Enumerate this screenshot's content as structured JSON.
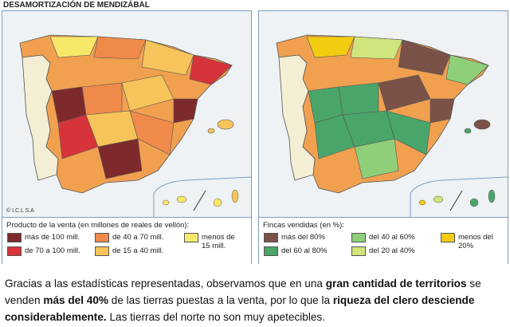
{
  "header": {
    "title": "DESAMORTIZACIÓN DE MENDIZÁBAL"
  },
  "maps": [
    {
      "credit": "© I.C.L S.A",
      "legend": {
        "title": "Producto de la venta (en millones de reales de vellón):",
        "items": [
          {
            "label": "más de 100 mill.",
            "color": "#7e2a2c"
          },
          {
            "label": "de 70 a 100 mill.",
            "color": "#d7333b"
          },
          {
            "label": "de 40 a 70 mill.",
            "color": "#ef8a4a"
          },
          {
            "label": "de 15 a 40 mill.",
            "color": "#f6c45a"
          },
          {
            "label": "menos de 15 mill.",
            "color": "#f8e86a"
          }
        ]
      }
    },
    {
      "legend": {
        "title": "Fincas vendidas (en %):",
        "items": [
          {
            "label": "más del 80%",
            "color": "#7a5248"
          },
          {
            "label": "del 60 al 80%",
            "color": "#4aa56a"
          },
          {
            "label": "del 40 al 60%",
            "color": "#8fcf7a"
          },
          {
            "label": "del 20 al 40%",
            "color": "#cfe47c"
          },
          {
            "label": "menos del 20%",
            "color": "#f2cc10"
          }
        ]
      }
    }
  ],
  "paragraph": {
    "segments": [
      {
        "text": "Gracias a las estadísticas representadas, observamos que en una ",
        "bold": false
      },
      {
        "text": "gran cantidad de territorios",
        "bold": true
      },
      {
        "text": " se venden ",
        "bold": false
      },
      {
        "text": "más del 40%",
        "bold": true
      },
      {
        "text": " de las tierras puestas a la venta, por lo que la ",
        "bold": false
      },
      {
        "text": "riqueza del clero desciende considerablemente.",
        "bold": true
      },
      {
        "text": " Las tierras del norte no son muy apetecibles.",
        "bold": false
      }
    ]
  }
}
